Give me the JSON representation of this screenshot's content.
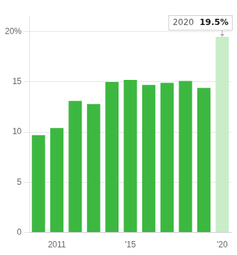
{
  "chart_data": {
    "type": "bar",
    "categories": [
      null,
      "2011",
      null,
      null,
      null,
      "'15",
      null,
      null,
      null,
      null,
      "'20"
    ],
    "values": [
      9.7,
      10.4,
      13.1,
      12.8,
      15.0,
      15.2,
      14.7,
      14.9,
      15.1,
      14.4,
      19.5
    ],
    "colors": [
      "#3cb840",
      "#3cb840",
      "#3cb840",
      "#3cb840",
      "#3cb840",
      "#3cb840",
      "#3cb840",
      "#3cb840",
      "#3cb840",
      "#3cb840",
      "#c8edc8"
    ],
    "ylim": [
      0,
      21.5
    ],
    "yticks": [
      0,
      5,
      10,
      15,
      {
        "value": 20,
        "label": "20%"
      }
    ],
    "grid": true,
    "annotations": [
      {
        "x": "'20",
        "y": 19.5,
        "texts": [
          "2020",
          "19.5%"
        ]
      }
    ]
  }
}
